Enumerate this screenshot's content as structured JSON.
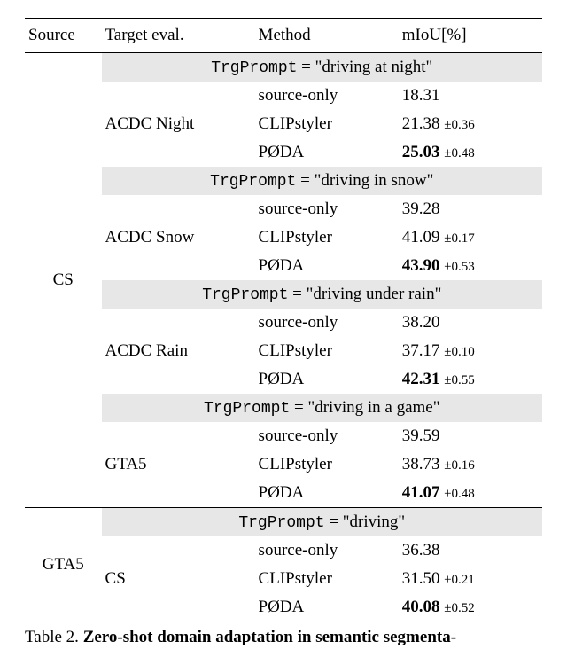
{
  "columns": {
    "source": "Source",
    "target": "Target eval.",
    "method": "Method",
    "miou": "mIoU[%]"
  },
  "sources": {
    "cs": "CS",
    "gta5": "GTA5"
  },
  "targets": {
    "acdc_night": "ACDC Night",
    "acdc_snow": "ACDC Snow",
    "acdc_rain": "ACDC Rain",
    "gta5": "GTA5",
    "cs": "CS"
  },
  "methods": {
    "source_only": "source-only",
    "clipstyler": "CLIPstyler",
    "poda": "PØDA"
  },
  "prompts": {
    "label": "TrgPrompt",
    "eq": " = ",
    "night": "\"driving at night\"",
    "snow": "\"driving in snow\"",
    "rain": "\"driving under rain\"",
    "game": "\"driving in a game\"",
    "driving": "\"driving\""
  },
  "values": {
    "night": {
      "source_only": "18.31",
      "clipstyler": "21.38",
      "clipstyler_std": "±0.36",
      "poda": "25.03",
      "poda_std": "±0.48"
    },
    "snow": {
      "source_only": "39.28",
      "clipstyler": "41.09",
      "clipstyler_std": "±0.17",
      "poda": "43.90",
      "poda_std": "±0.53"
    },
    "rain": {
      "source_only": "38.20",
      "clipstyler": "37.17",
      "clipstyler_std": "±0.10",
      "poda": "42.31",
      "poda_std": "±0.55"
    },
    "game": {
      "source_only": "39.59",
      "clipstyler": "38.73",
      "clipstyler_std": "±0.16",
      "poda": "41.07",
      "poda_std": "±0.48"
    },
    "driving": {
      "source_only": "36.38",
      "clipstyler": "31.50",
      "clipstyler_std": "±0.21",
      "poda": "40.08",
      "poda_std": "±0.52"
    }
  },
  "caption": "Table 2. Zero-shot domain adaptation in semantic segmenta-",
  "caption_bold_start": "Zero-shot domain adaptation in semantic segmenta-"
}
